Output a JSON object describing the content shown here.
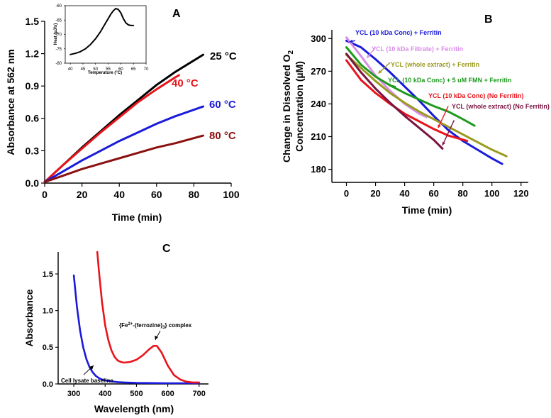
{
  "chart_data": [
    {
      "panel": "A",
      "type": "line",
      "xlabel": "Time (min)",
      "ylabel": "Absorbance at 562 nm",
      "xlim": [
        0,
        100
      ],
      "ylim": [
        0,
        1.5
      ],
      "xticks": [
        0,
        20,
        40,
        60,
        80,
        100
      ],
      "yticks": [
        0.0,
        0.3,
        0.6,
        0.9,
        1.2,
        1.5
      ],
      "ytick_labels": [
        "0.0",
        "0.3",
        "0.6",
        "0.9",
        "1.2",
        "1.5"
      ],
      "series": [
        {
          "name": "25 °C",
          "color": "#000000",
          "x": [
            0,
            10,
            20,
            30,
            40,
            50,
            60,
            70,
            85
          ],
          "y": [
            0.01,
            0.17,
            0.33,
            0.48,
            0.63,
            0.77,
            0.91,
            1.03,
            1.19
          ]
        },
        {
          "name": "40 °C",
          "color": "#e8141b",
          "x": [
            0,
            10,
            20,
            30,
            40,
            50,
            60,
            70,
            72
          ],
          "y": [
            0.01,
            0.17,
            0.32,
            0.47,
            0.61,
            0.75,
            0.87,
            0.98,
            1.0
          ]
        },
        {
          "name": "60 °C",
          "color": "#1a1adb",
          "x": [
            0,
            10,
            20,
            30,
            40,
            50,
            60,
            70,
            85
          ],
          "y": [
            0.01,
            0.11,
            0.21,
            0.3,
            0.39,
            0.47,
            0.55,
            0.62,
            0.71
          ]
        },
        {
          "name": "80 °C",
          "color": "#8b1010",
          "x": [
            0,
            10,
            20,
            30,
            40,
            50,
            60,
            70,
            85
          ],
          "y": [
            0.01,
            0.07,
            0.13,
            0.18,
            0.23,
            0.28,
            0.33,
            0.37,
            0.44
          ]
        }
      ],
      "inset": {
        "xlabel": "Temperature (°C)",
        "ylabel": "Heat (µJ/s)",
        "xlim": [
          38,
          70
        ],
        "ylim": [
          -80,
          -60
        ],
        "xticks": [
          40,
          45,
          50,
          55,
          60,
          65,
          70
        ],
        "yticks": [
          -80,
          -75,
          -70,
          -65,
          -60
        ],
        "x": [
          40,
          42,
          44,
          46,
          48,
          50,
          52,
          54,
          55,
          56,
          57,
          58,
          59,
          60,
          61,
          62,
          63,
          64,
          65
        ],
        "y": [
          -77,
          -76.6,
          -76,
          -75,
          -73.5,
          -71.5,
          -69,
          -66,
          -64.5,
          -63,
          -61.8,
          -61,
          -61.3,
          -62.5,
          -64.5,
          -66,
          -66.7,
          -66.9,
          -66.9
        ]
      }
    },
    {
      "panel": "B",
      "type": "line",
      "xlabel": "Time (min)",
      "ylabel_line1": "Change in Dissolved O",
      "ylabel_sub": "2",
      "ylabel_line2": "Concentration (µM)",
      "xlim": [
        -10,
        125
      ],
      "ylim": [
        168,
        308
      ],
      "xticks": [
        0,
        20,
        40,
        60,
        80,
        100,
        120
      ],
      "yticks": [
        180,
        210,
        240,
        270,
        300
      ],
      "series": [
        {
          "name": "YCL (10 kDa Conc) + Ferritin",
          "color": "#1a1adb",
          "x": [
            0,
            10,
            20,
            30,
            40,
            50,
            60,
            70,
            80,
            90,
            100,
            107
          ],
          "y": [
            298,
            292,
            281,
            269,
            256,
            243,
            229,
            216,
            206,
            198,
            190,
            185
          ]
        },
        {
          "name": "YCL (10 kDa Filtrate) + Ferritin",
          "color": "#d98de8",
          "x": [
            0,
            10,
            20,
            30,
            40,
            50,
            55
          ],
          "y": [
            301,
            284,
            266,
            252,
            240,
            231,
            228
          ]
        },
        {
          "name": "YCL (whole extract) + Ferritin",
          "color": "#9a9a20",
          "x": [
            0,
            10,
            20,
            30,
            40,
            50,
            60,
            70,
            80,
            90,
            100,
            110
          ],
          "y": [
            285,
            273,
            261,
            250,
            241,
            233,
            226,
            219,
            212,
            205,
            198,
            192
          ]
        },
        {
          "name": "YCL (10 kDa Conc) + 5 uM FMN + Ferritin",
          "color": "#1f9a1f",
          "x": [
            0,
            10,
            20,
            30,
            40,
            50,
            60,
            70,
            80,
            88
          ],
          "y": [
            292,
            276,
            265,
            257,
            250,
            244,
            238,
            233,
            226,
            220
          ]
        },
        {
          "name": "YCL (10 kDa Conc) (No Ferritin)",
          "color": "#e8141b",
          "x": [
            0,
            10,
            20,
            30,
            40,
            50,
            60,
            70,
            83
          ],
          "y": [
            280,
            262,
            250,
            240,
            231,
            224,
            217,
            211,
            206
          ]
        },
        {
          "name": "YCL (whole extract) (No Ferritin)",
          "color": "#7a1440",
          "x": [
            0,
            10,
            20,
            30,
            40,
            50,
            60,
            66
          ],
          "y": [
            286,
            269,
            254,
            241,
            229,
            218,
            207,
            199
          ]
        }
      ]
    },
    {
      "panel": "C",
      "type": "line",
      "xlabel": "Wavelength (nm)",
      "ylabel": "Absorbance",
      "xlim": [
        250,
        730
      ],
      "ylim": [
        0,
        1.8
      ],
      "xticks": [
        300,
        400,
        500,
        600,
        700
      ],
      "yticks": [
        0.0,
        0.5,
        1.0,
        1.5
      ],
      "ytick_labels": [
        "0.0",
        "0.5",
        "1.0",
        "1.5"
      ],
      "series": [
        {
          "name": "Cell lysate baseline",
          "color": "#1a1adb",
          "x": [
            300,
            310,
            320,
            330,
            340,
            350,
            360,
            370,
            380,
            390,
            400,
            420,
            440,
            460,
            500,
            600,
            700
          ],
          "y": [
            1.48,
            1.05,
            0.73,
            0.5,
            0.34,
            0.23,
            0.16,
            0.11,
            0.08,
            0.06,
            0.05,
            0.035,
            0.025,
            0.02,
            0.015,
            0.01,
            0.01
          ]
        },
        {
          "name": "[Fe2+-(ferrozine)3] complex",
          "color": "#e8141b",
          "x": [
            375,
            380,
            390,
            400,
            410,
            420,
            430,
            440,
            450,
            460,
            480,
            500,
            520,
            540,
            555,
            565,
            580,
            600,
            620,
            640,
            660,
            680,
            700
          ],
          "y": [
            1.8,
            1.55,
            1.12,
            0.8,
            0.6,
            0.46,
            0.37,
            0.32,
            0.3,
            0.29,
            0.3,
            0.33,
            0.39,
            0.47,
            0.52,
            0.52,
            0.43,
            0.25,
            0.12,
            0.06,
            0.03,
            0.02,
            0.02
          ]
        }
      ]
    }
  ],
  "labels": {
    "panelA": "A",
    "panelB": "B",
    "panelC": "C",
    "a25": "25 °C",
    "a40": "40 °C",
    "a60": "60 °C",
    "a80": "80 °C",
    "b1": "YCL (10 kDa Conc) + Ferritin",
    "b2": "YCL (10 kDa Filtrate) + Ferritin",
    "b3": "YCL (whole extract) + Ferritin",
    "b4": "YCL (10 kDa Conc) + 5 uM FMN + Ferritin",
    "b5": "YCL (10 kDa Conc) (No Ferritin)",
    "b6": "YCL (whole extract) (No Ferritin)",
    "c_complex_pre": "{Fe",
    "c_complex_sup": "2+",
    "c_complex_mid": "-(ferrozine)",
    "c_complex_sub": "3",
    "c_complex_post": "} complex",
    "c_baseline": "Cell lysate baseline"
  }
}
